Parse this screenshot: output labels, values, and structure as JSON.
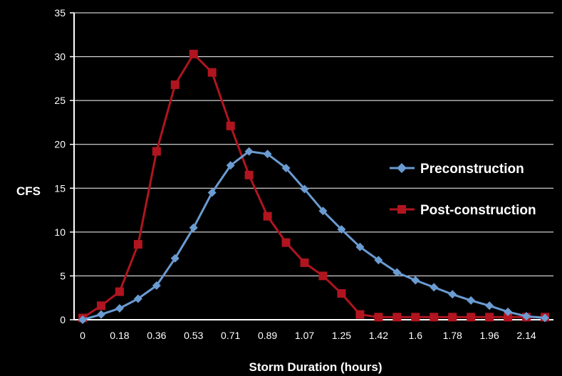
{
  "chart_data": {
    "type": "line",
    "xlabel": "Storm Duration (hours)",
    "ylabel": "CFS",
    "ylim": [
      0,
      35
    ],
    "yticks": [
      0,
      5,
      10,
      15,
      20,
      25,
      30,
      35
    ],
    "x_tick_labels": [
      "0",
      "0.18",
      "0.36",
      "0.53",
      "0.71",
      "0.89",
      "1.07",
      "1.25",
      "1.42",
      "1.6",
      "1.78",
      "1.96",
      "2.14"
    ],
    "grid": true,
    "legend_position": "right",
    "series": [
      {
        "name": "Preconstruction",
        "color": "#6A9BD1",
        "marker": "diamond",
        "values": [
          0,
          0.6,
          1.3,
          2.4,
          3.9,
          7.0,
          10.5,
          14.5,
          17.6,
          19.2,
          18.9,
          17.3,
          14.9,
          12.4,
          10.3,
          8.3,
          6.8,
          5.4,
          4.5,
          3.7,
          2.9,
          2.2,
          1.6,
          0.9,
          0.4,
          0.2
        ]
      },
      {
        "name": "Post-construction",
        "color": "#B0151F",
        "marker": "square",
        "values": [
          0.2,
          1.6,
          3.2,
          8.6,
          19.2,
          26.8,
          30.3,
          28.2,
          22.1,
          16.5,
          11.8,
          8.8,
          6.5,
          5.0,
          3.0,
          0.6,
          0.3,
          0.3,
          0.3,
          0.3,
          0.3,
          0.3,
          0.3,
          0.3,
          0.3,
          0.3
        ]
      }
    ]
  }
}
